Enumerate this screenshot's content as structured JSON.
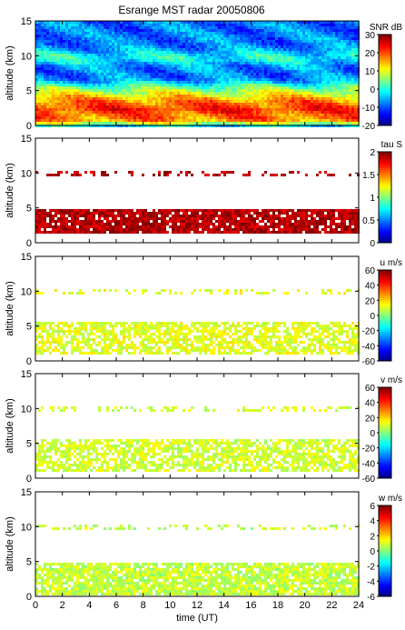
{
  "figure": {
    "title": "Esrange MST radar 20050806"
  },
  "chart_data": [
    {
      "type": "heatmap",
      "variable": "SNR",
      "colorbar_label": "SNR dB",
      "clim": [
        -20,
        30
      ],
      "colorbar_ticks": [
        "-20",
        "-10",
        "0",
        "10",
        "20",
        "30"
      ],
      "xlim": [
        0,
        24
      ],
      "ylim": [
        0,
        15
      ],
      "ylabel": "altitude (km)",
      "xlabel": "",
      "yticks": [
        "0",
        "5",
        "10",
        "15"
      ],
      "coverage": "full",
      "layers": [
        {
          "alt": [
            0.2,
            1.2
          ],
          "value": 10
        },
        {
          "alt": [
            1.2,
            3.0
          ],
          "value": 22
        },
        {
          "alt": [
            3.0,
            4.6
          ],
          "value": 12
        },
        {
          "alt": [
            4.6,
            6.0
          ],
          "value": 3
        },
        {
          "alt": [
            9.0,
            10.5
          ],
          "value": 0
        }
      ]
    },
    {
      "type": "heatmap",
      "variable": "tau",
      "colorbar_label": "tau S",
      "clim": [
        0,
        2
      ],
      "colorbar_ticks": [
        "0",
        "0.5",
        "1",
        "1.5",
        "2"
      ],
      "xlim": [
        0,
        24
      ],
      "ylim": [
        0,
        15
      ],
      "ylabel": "altitude (km)",
      "xlabel": "",
      "yticks": [
        "0",
        "5",
        "10",
        "15"
      ],
      "coverage": "sparse",
      "dominant_value": 1.9,
      "data_regions": [
        {
          "alt": [
            1.5,
            5.0
          ],
          "density": 0.9
        },
        {
          "alt": [
            9.5,
            10.2
          ],
          "density": 0.3
        }
      ]
    },
    {
      "type": "heatmap",
      "variable": "u",
      "colorbar_label": "u m/s",
      "clim": [
        -60,
        60
      ],
      "colorbar_ticks": [
        "-60",
        "-40",
        "-20",
        "0",
        "20",
        "40",
        "60"
      ],
      "xlim": [
        0,
        24
      ],
      "ylim": [
        0,
        15
      ],
      "ylabel": "altitude (km)",
      "xlabel": "",
      "yticks": [
        "0",
        "5",
        "10",
        "15"
      ],
      "coverage": "sparse",
      "dominant_value": 12,
      "data_regions": [
        {
          "alt": [
            1.0,
            5.5
          ],
          "density": 0.7
        },
        {
          "alt": [
            9.5,
            10.2
          ],
          "density": 0.3
        }
      ]
    },
    {
      "type": "heatmap",
      "variable": "v",
      "colorbar_label": "v m/s",
      "clim": [
        -60,
        60
      ],
      "colorbar_ticks": [
        "-60",
        "-40",
        "-20",
        "0",
        "20",
        "40",
        "60"
      ],
      "xlim": [
        0,
        24
      ],
      "ylim": [
        0,
        15
      ],
      "ylabel": "altitude (km)",
      "xlabel": "",
      "yticks": [
        "0",
        "5",
        "10",
        "15"
      ],
      "coverage": "sparse",
      "dominant_value": 10,
      "data_regions": [
        {
          "alt": [
            1.0,
            5.5
          ],
          "density": 0.7
        },
        {
          "alt": [
            9.5,
            10.2
          ],
          "density": 0.3
        }
      ]
    },
    {
      "type": "heatmap",
      "variable": "w",
      "colorbar_label": "w m/s",
      "clim": [
        -6,
        6
      ],
      "colorbar_ticks": [
        "-6",
        "-4",
        "-2",
        "0",
        "2",
        "4",
        "6"
      ],
      "xlim": [
        0,
        24
      ],
      "ylim": [
        0,
        15
      ],
      "ylabel": "altitude (km)",
      "xlabel": "time (UT)",
      "xticks": [
        "0",
        "2",
        "4",
        "6",
        "8",
        "10",
        "12",
        "14",
        "16",
        "18",
        "20",
        "22",
        "24"
      ],
      "yticks": [
        "0",
        "5",
        "10",
        "15"
      ],
      "coverage": "sparse",
      "dominant_value": 0.8,
      "data_regions": [
        {
          "alt": [
            0.3,
            5.0
          ],
          "density": 0.85
        },
        {
          "alt": [
            9.5,
            10.2
          ],
          "density": 0.3
        }
      ]
    }
  ]
}
